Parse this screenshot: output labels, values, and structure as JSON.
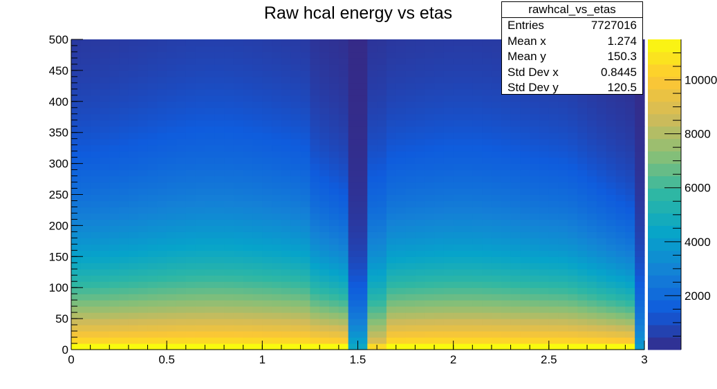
{
  "chart_data": {
    "type": "heatmap",
    "title": "Raw hcal energy vs etas",
    "xlabel": "",
    "ylabel": "",
    "xlim": [
      0,
      3
    ],
    "ylim": [
      0,
      500
    ],
    "x_ticks": [
      "0",
      "0.5",
      "1",
      "1.5",
      "2",
      "2.5",
      "3"
    ],
    "y_ticks": [
      "0",
      "50",
      "100",
      "150",
      "200",
      "250",
      "300",
      "350",
      "400",
      "450",
      "500"
    ],
    "x_bins": 60,
    "y_bins": 50,
    "gap_eta": [
      1.44,
      1.56
    ],
    "z_max": 11500,
    "colorbar_ticks": [
      "2000",
      "4000",
      "6000",
      "8000",
      "10000"
    ],
    "colorbar_values": [
      2000,
      4000,
      6000,
      8000,
      10000
    ],
    "palette": [
      "#352a87",
      "#0f5cdd",
      "#1481d6",
      "#06a4ca",
      "#2eb7a4",
      "#87bf77",
      "#d1bb59",
      "#fec832",
      "#f9fb0e"
    ],
    "stats_box": {
      "name": "rawhcal_vs_etas",
      "entries_label": "Entries",
      "entries": "7727016",
      "meanx_label": "Mean x",
      "meanx": "1.274",
      "meany_label": "Mean y",
      "meany": "150.3",
      "stdx_label": "Std Dev x",
      "stdx": "0.8445",
      "stdy_label": "Std Dev y",
      "stdy": "120.5"
    }
  }
}
